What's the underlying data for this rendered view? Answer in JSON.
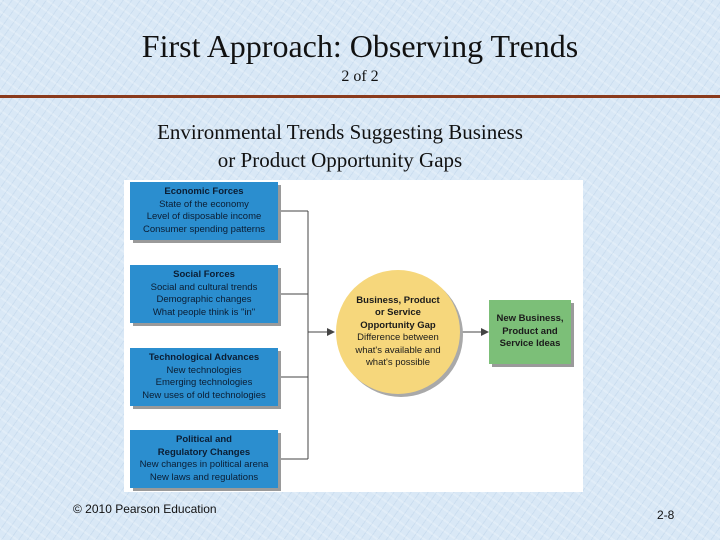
{
  "slide": {
    "title": "First Approach: Observing Trends",
    "subtitle": "2 of 2",
    "heading_line1": "Environmental Trends Suggesting Business",
    "heading_line2": "or Product Opportunity Gaps",
    "footer": "© 2010 Pearson Education",
    "page_number": "2-8",
    "rule_color": "#8a3a1c"
  },
  "diagram": {
    "forces": [
      {
        "title": "Economic Forces",
        "lines": [
          "State of the economy",
          "Level of disposable income",
          "Consumer spending patterns"
        ]
      },
      {
        "title": "Social Forces",
        "lines": [
          "Social and cultural trends",
          "Demographic changes",
          "What people think is \"in\""
        ]
      },
      {
        "title": "Technological Advances",
        "lines": [
          "New technologies",
          "Emerging technologies",
          "New uses of old technologies"
        ]
      },
      {
        "title": "Political and",
        "title2": "Regulatory Changes",
        "lines": [
          "New changes in political arena",
          "New laws and regulations"
        ]
      }
    ],
    "gap": {
      "title_lines": [
        "Business, Product",
        "or Service",
        "Opportunity Gap"
      ],
      "lines": [
        "Difference between",
        "what's available and",
        "what's possible"
      ]
    },
    "outcome": {
      "lines": [
        "New Business,",
        "Product and",
        "Service Ideas"
      ]
    },
    "colors": {
      "forces": "#2b8ecf",
      "gap": "#f6d77c",
      "outcome": "#7cbf78"
    }
  }
}
